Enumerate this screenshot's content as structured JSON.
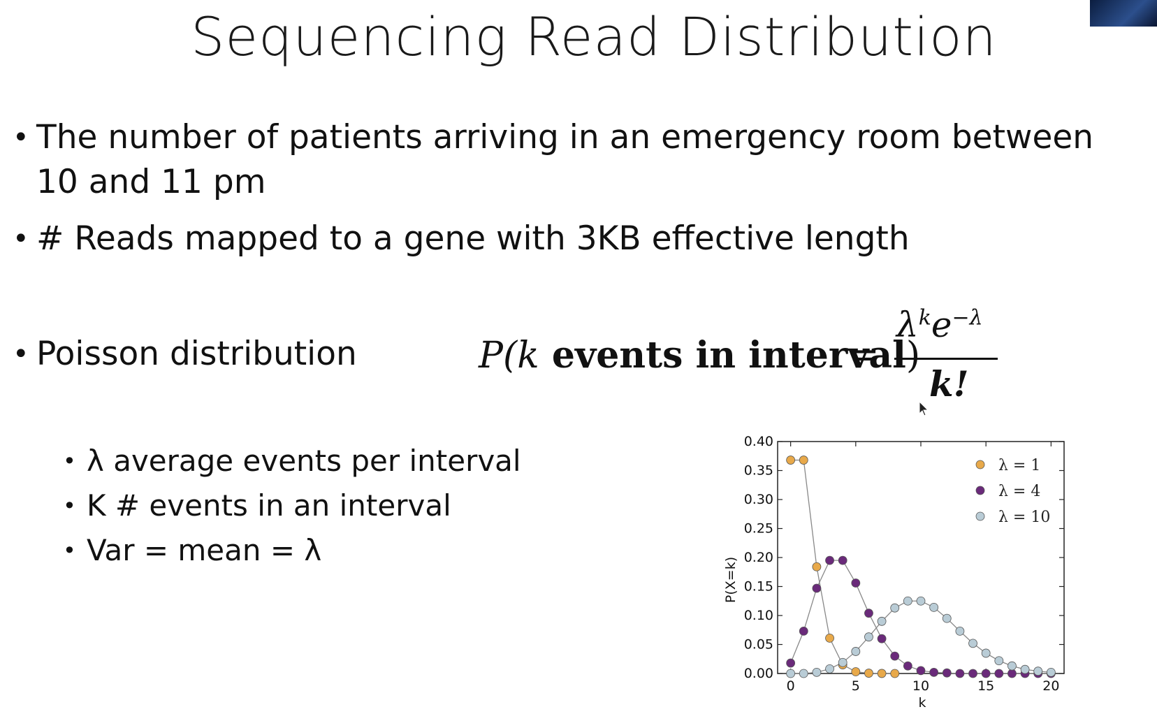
{
  "slide": {
    "title": "Sequencing Read Distribution",
    "bullets": [
      "The number of patients arriving in an emergency room between 10 and 11 pm",
      "# Reads mapped to a gene with 3KB effective length",
      "Poisson distribution"
    ],
    "sub_bullets": [
      "λ average events per interval",
      "K # events in an interval",
      "Var = mean = λ"
    ],
    "formula": {
      "lhs_P": "P(",
      "lhs_k": "k",
      "lhs_text": " events in interval",
      "lhs_close": ")",
      "equals": "=",
      "numerator_base": "λ",
      "numerator_exp1": "k",
      "numerator_e": "e",
      "numerator_exp2": "−λ",
      "denominator": "k!"
    }
  },
  "icons": {
    "bullet": "bullet-dot",
    "cursor": "mouse-pointer-icon",
    "thumbnail": "presenter-video-thumbnail"
  },
  "chart_data": {
    "type": "scatter",
    "title": "",
    "xlabel": "k",
    "ylabel": "P(X=k)",
    "xlim": [
      -1,
      21
    ],
    "ylim": [
      0,
      0.4
    ],
    "xticks": [
      0,
      5,
      10,
      15,
      20
    ],
    "yticks": [
      "0.00",
      "0.05",
      "0.10",
      "0.15",
      "0.20",
      "0.25",
      "0.30",
      "0.35",
      "0.40"
    ],
    "legend_position": "top-right",
    "series": [
      {
        "name": "λ = 1",
        "color": "#e8a94a",
        "x": [
          0,
          1,
          2,
          3,
          4,
          5,
          6,
          7,
          8
        ],
        "values": [
          0.368,
          0.368,
          0.184,
          0.061,
          0.015,
          0.003,
          0.0005,
          0.0001,
          0.0
        ]
      },
      {
        "name": "λ = 4",
        "color": "#6a2a7a",
        "x": [
          0,
          1,
          2,
          3,
          4,
          5,
          6,
          7,
          8,
          9,
          10,
          11,
          12,
          13,
          14,
          15,
          16,
          17,
          18,
          19,
          20
        ],
        "values": [
          0.018,
          0.073,
          0.147,
          0.195,
          0.195,
          0.156,
          0.104,
          0.06,
          0.03,
          0.013,
          0.005,
          0.002,
          0.001,
          0.0,
          0.0,
          0.0,
          0.0,
          0.0,
          0.0,
          0.0,
          0.0
        ]
      },
      {
        "name": "λ = 10",
        "color": "#b9ccd6",
        "x": [
          0,
          1,
          2,
          3,
          4,
          5,
          6,
          7,
          8,
          9,
          10,
          11,
          12,
          13,
          14,
          15,
          16,
          17,
          18,
          19,
          20
        ],
        "values": [
          0.0,
          0.0,
          0.002,
          0.008,
          0.019,
          0.038,
          0.063,
          0.09,
          0.113,
          0.125,
          0.125,
          0.114,
          0.095,
          0.073,
          0.052,
          0.035,
          0.022,
          0.013,
          0.007,
          0.004,
          0.002
        ]
      }
    ]
  }
}
